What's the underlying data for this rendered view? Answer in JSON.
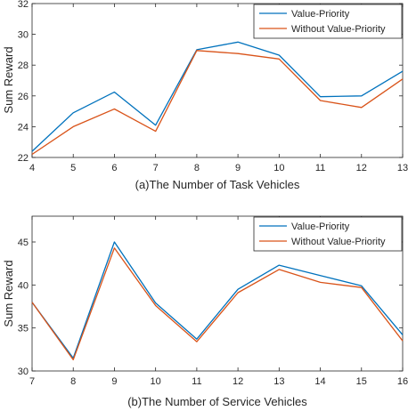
{
  "chart_data": [
    {
      "type": "line",
      "title": "",
      "xlabel": "(a)The Number of Task Vehicles",
      "ylabel": "Sum Reward",
      "x": [
        4,
        5,
        6,
        7,
        8,
        9,
        10,
        11,
        12,
        13
      ],
      "xlim": [
        4,
        13
      ],
      "ylim": [
        22,
        32
      ],
      "xticks": [
        4,
        5,
        6,
        7,
        8,
        9,
        10,
        11,
        12,
        13
      ],
      "yticks": [
        22,
        24,
        26,
        28,
        30,
        32
      ],
      "grid": false,
      "legend_position": "top-right",
      "series": [
        {
          "name": "Value-Priority",
          "color": "#0072BD",
          "values": [
            22.4,
            24.9,
            26.25,
            24.1,
            29.0,
            29.5,
            28.65,
            25.95,
            26.0,
            27.6
          ]
        },
        {
          "name": "Without Value-Priority",
          "color": "#D95319",
          "values": [
            22.2,
            24.0,
            25.15,
            23.7,
            28.95,
            28.75,
            28.4,
            25.7,
            25.25,
            27.1
          ]
        }
      ]
    },
    {
      "type": "line",
      "title": "",
      "xlabel": "(b)The Number of Service Vehicles",
      "ylabel": "Sum Reward",
      "x": [
        7,
        8,
        9,
        10,
        11,
        12,
        13,
        14,
        15,
        16
      ],
      "xlim": [
        7,
        16
      ],
      "ylim": [
        30,
        48
      ],
      "xticks": [
        7,
        8,
        9,
        10,
        11,
        12,
        13,
        14,
        15,
        16
      ],
      "yticks": [
        30,
        35,
        40,
        45
      ],
      "grid": false,
      "legend_position": "top-right",
      "series": [
        {
          "name": "Value-Priority",
          "color": "#0072BD",
          "values": [
            38.0,
            31.5,
            45.0,
            37.9,
            33.7,
            39.5,
            42.3,
            41.1,
            39.9,
            34.2
          ]
        },
        {
          "name": "Without Value-Priority",
          "color": "#D95319",
          "values": [
            38.0,
            31.3,
            44.3,
            37.6,
            33.4,
            39.1,
            41.8,
            40.3,
            39.7,
            33.5
          ]
        }
      ]
    }
  ]
}
